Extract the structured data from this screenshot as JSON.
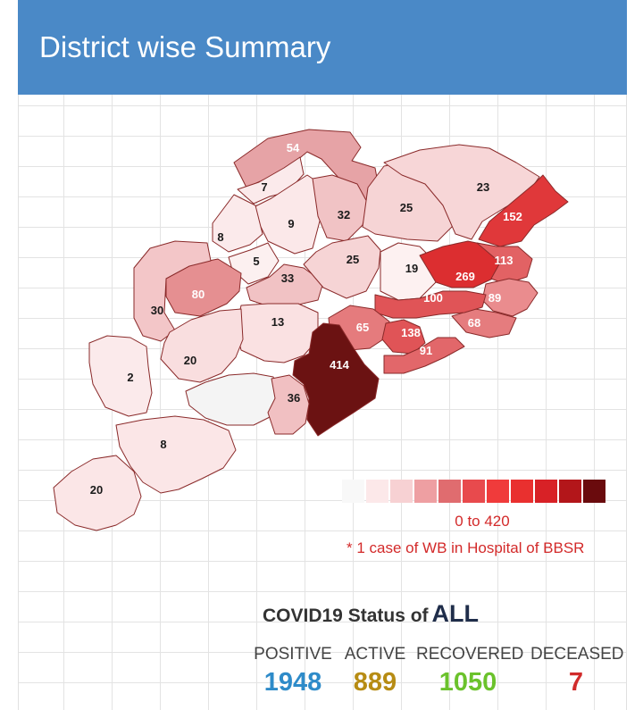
{
  "header": {
    "title": "District wise Summary"
  },
  "map": {
    "districts": [
      {
        "id": "northwest-top",
        "value": "54",
        "fill": "#e6a3a6"
      },
      {
        "id": "north-center",
        "value": "7",
        "fill": "#fbeaeb"
      },
      {
        "id": "north-2",
        "value": "9",
        "fill": "#fbe8e9"
      },
      {
        "id": "north-3",
        "value": "32",
        "fill": "#f1c3c5"
      },
      {
        "id": "north-4",
        "value": "25",
        "fill": "#f6d4d5"
      },
      {
        "id": "northeast",
        "value": "23",
        "fill": "#f7d6d7"
      },
      {
        "id": "balasore",
        "value": "152",
        "fill": "#e0383a"
      },
      {
        "id": "west-8",
        "value": "8",
        "fill": "#fbeaeb"
      },
      {
        "id": "west-5",
        "value": "5",
        "fill": "#fcf0f0"
      },
      {
        "id": "center-33",
        "value": "33",
        "fill": "#f1c2c4"
      },
      {
        "id": "center-25",
        "value": "25",
        "fill": "#f6d4d5"
      },
      {
        "id": "angul",
        "value": "19",
        "fill": "#fdf1f1"
      },
      {
        "id": "jajpur",
        "value": "269",
        "fill": "#dc2e30"
      },
      {
        "id": "bhadrak",
        "value": "113",
        "fill": "#e26264"
      },
      {
        "id": "jagatsinghpur",
        "value": "89",
        "fill": "#ea8c8e"
      },
      {
        "id": "kendrapara",
        "value": "68",
        "fill": "#e57c7e"
      },
      {
        "id": "cuttack",
        "value": "100",
        "fill": "#e05457"
      },
      {
        "id": "west-80",
        "value": "80",
        "fill": "#e58f91"
      },
      {
        "id": "west-30",
        "value": "30",
        "fill": "#f3c6c8"
      },
      {
        "id": "center-13",
        "value": "13",
        "fill": "#fae1e2"
      },
      {
        "id": "nayagarh",
        "value": "65",
        "fill": "#e57b7d"
      },
      {
        "id": "khordha",
        "value": "138",
        "fill": "#e05457"
      },
      {
        "id": "puri",
        "value": "91",
        "fill": "#e2676a"
      },
      {
        "id": "ganjam",
        "value": "414",
        "fill": "#6b1212"
      },
      {
        "id": "south-20",
        "value": "20",
        "fill": "#f9dedf"
      },
      {
        "id": "south-2",
        "value": "2",
        "fill": "#fbeaeb"
      },
      {
        "id": "kandhamal-zero",
        "value": "",
        "fill": "#f4f4f4"
      },
      {
        "id": "gajapati",
        "value": "36",
        "fill": "#f1c0c2"
      },
      {
        "id": "koraput",
        "value": "8",
        "fill": "#fbe6e7"
      },
      {
        "id": "malkangiri",
        "value": "20",
        "fill": "#fbe6e7"
      }
    ]
  },
  "legend": {
    "colors": [
      "#f8f8f8",
      "#fce8e9",
      "#f7d1d3",
      "#ee9fa2",
      "#e06c6f",
      "#e84a4d",
      "#f03b3b",
      "#e9302f",
      "#d82126",
      "#b3161a",
      "#6a0b0d"
    ],
    "range_label": "0 to 420",
    "note": "* 1 case of WB in Hospital of BBSR"
  },
  "status": {
    "title": "COVID19 Status of",
    "scope": "ALL",
    "positive": {
      "label": "POSITIVE",
      "value": "1948",
      "color": "#2e8bc9"
    },
    "active": {
      "label": "ACTIVE",
      "value": "889",
      "color": "#b78c14"
    },
    "recovered": {
      "label": "RECOVERED",
      "value": "1050",
      "color": "#6bc22c"
    },
    "deceased": {
      "label": "DECEASED",
      "value": "7",
      "color": "#d12b2b"
    }
  }
}
